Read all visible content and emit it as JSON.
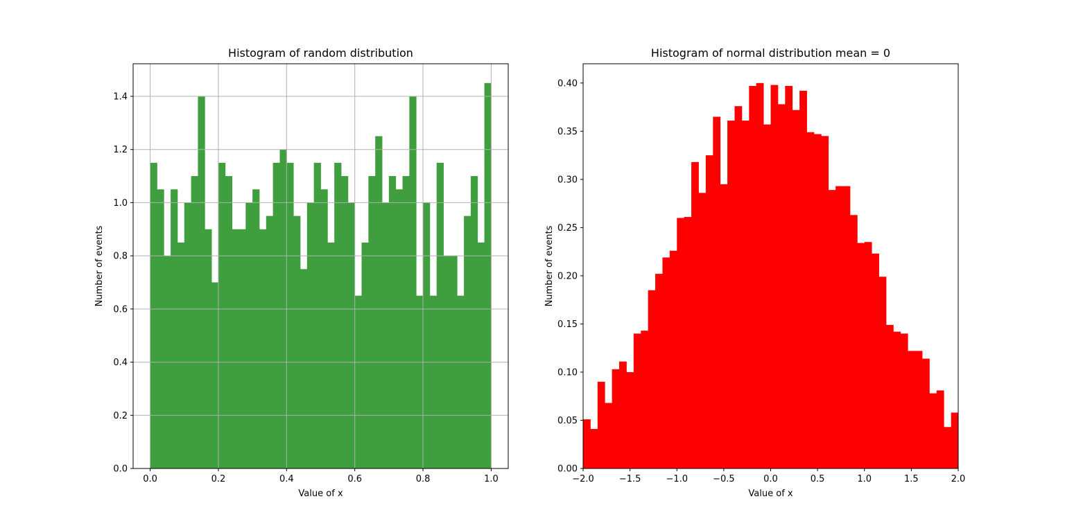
{
  "chart_data": [
    {
      "type": "bar",
      "title": "Histogram of random distribution",
      "xlabel": "Value of x",
      "ylabel": "Number of events",
      "xlim": [
        -0.05,
        1.05
      ],
      "ylim": [
        0,
        1.5225
      ],
      "xticks": [
        "0.0",
        "0.2",
        "0.4",
        "0.6",
        "0.8",
        "1.0"
      ],
      "yticks": [
        "0.0",
        "0.2",
        "0.4",
        "0.6",
        "0.8",
        "1.0",
        "1.2",
        "1.4"
      ],
      "grid": true,
      "bin_range": [
        0,
        1
      ],
      "values": [
        1.15,
        1.05,
        0.8,
        1.05,
        0.85,
        1.0,
        1.1,
        1.4,
        0.9,
        0.7,
        1.15,
        1.1,
        0.9,
        0.9,
        1.0,
        1.05,
        0.9,
        0.95,
        1.15,
        1.2,
        1.15,
        0.95,
        0.75,
        1.0,
        1.15,
        1.05,
        0.85,
        1.15,
        1.1,
        1.0,
        0.65,
        0.85,
        1.1,
        1.25,
        1.0,
        1.1,
        1.05,
        1.1,
        1.4,
        0.65,
        1.0,
        0.65,
        1.15,
        0.8,
        0.8,
        0.65,
        0.95,
        1.1,
        0.85,
        1.45
      ],
      "color": "#3f9f3f"
    },
    {
      "type": "bar",
      "title": "Histogram of normal distribution mean = 0",
      "xlabel": "Value of x",
      "ylabel": "Number of events",
      "xlim": [
        -2.0,
        2.0
      ],
      "ylim": [
        0,
        0.42
      ],
      "xticks": [
        "−2.0",
        "−1.5",
        "−1.0",
        "−0.5",
        "0.0",
        "0.5",
        "1.0",
        "1.5",
        "2.0"
      ],
      "yticks": [
        "0.00",
        "0.05",
        "0.10",
        "0.15",
        "0.20",
        "0.25",
        "0.30",
        "0.35",
        "0.40"
      ],
      "grid": false,
      "bin_range": [
        -2.0,
        2.0
      ],
      "values": [
        0.051,
        0.041,
        0.09,
        0.068,
        0.103,
        0.111,
        0.1,
        0.14,
        0.143,
        0.185,
        0.202,
        0.219,
        0.226,
        0.26,
        0.261,
        0.318,
        0.286,
        0.325,
        0.365,
        0.295,
        0.361,
        0.376,
        0.361,
        0.397,
        0.4,
        0.357,
        0.398,
        0.378,
        0.397,
        0.372,
        0.392,
        0.349,
        0.347,
        0.345,
        0.289,
        0.293,
        0.293,
        0.263,
        0.234,
        0.235,
        0.223,
        0.199,
        0.149,
        0.142,
        0.14,
        0.122,
        0.122,
        0.114,
        0.078,
        0.081,
        0.043,
        0.058
      ],
      "color": "#ff0000"
    }
  ]
}
